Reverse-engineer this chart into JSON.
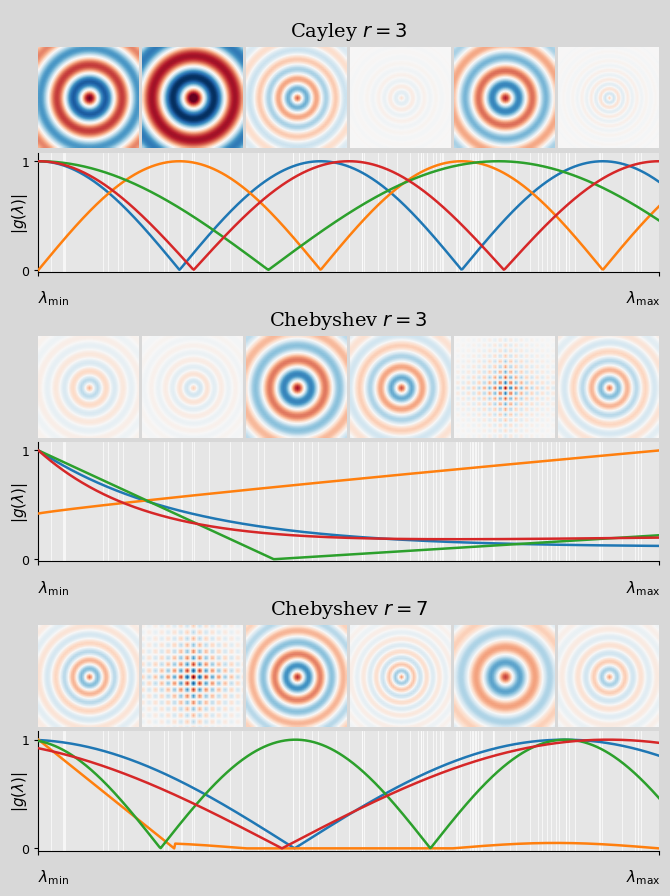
{
  "sections": [
    {
      "title": "Cayley $r = 3$",
      "images": [
        "cayley3_1",
        "cayley3_2",
        "cayley3_3",
        "cayley3_4",
        "cayley3_5",
        "cayley3_6"
      ]
    },
    {
      "title": "Chebyshev $r = 3$",
      "images": [
        "cheby3_1",
        "cheby3_2",
        "cheby3_3",
        "cheby3_4",
        "cheby3_5",
        "cheby3_6"
      ]
    },
    {
      "title": "Chebyshev $r = 7$",
      "images": [
        "cheby7_1",
        "cheby7_2",
        "cheby7_3",
        "cheby7_4",
        "cheby7_5",
        "cheby7_6"
      ]
    }
  ],
  "colors": {
    "blue": "#1f77b4",
    "orange": "#ff7f0e",
    "green": "#2ca02c",
    "red": "#d62728"
  },
  "bg_color": "#d8d8d8",
  "plot_bg": "#e6e6e6",
  "ylabel": "$|g(\\lambda)|$",
  "xlabel_left": "$\\lambda_{\\min}$",
  "xlabel_right": "$\\lambda_{\\max}$",
  "title_fontsize": 14,
  "label_fontsize": 11
}
